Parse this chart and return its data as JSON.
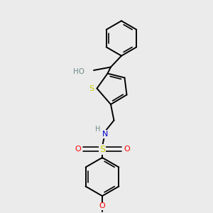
{
  "background_color": "#ebebeb",
  "bond_color": "#000000",
  "atom_colors": {
    "O": "#FF0000",
    "N": "#0000CD",
    "S_thio": "#CCCC00",
    "S_sul": "#CCCC00",
    "H_gray": "#6e8b8b"
  },
  "figsize": [
    3.0,
    3.0
  ],
  "dpi": 100,
  "xlim": [
    0,
    10
  ],
  "ylim": [
    0,
    10
  ]
}
